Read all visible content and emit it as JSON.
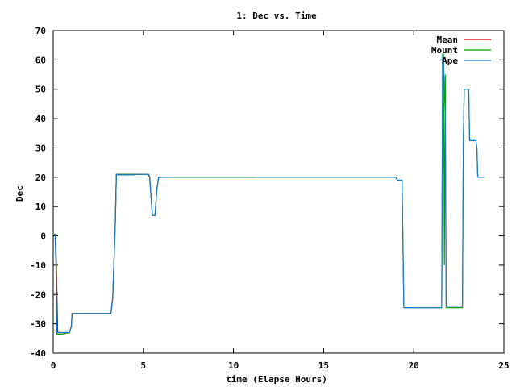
{
  "chart_data": {
    "type": "line",
    "title": "1: Dec vs. Time",
    "xlabel": "time (Elapse Hours)",
    "ylabel": "Dec",
    "xlim": [
      0,
      25
    ],
    "ylim": [
      -40,
      70
    ],
    "xticks": [
      0,
      5,
      10,
      15,
      20,
      25
    ],
    "yticks": [
      -40,
      -30,
      -20,
      -10,
      0,
      10,
      20,
      30,
      40,
      50,
      60,
      70
    ],
    "grid": false,
    "legend_position": "top-right",
    "series": [
      {
        "name": "Mean",
        "color": "#cc0000",
        "x": [
          0.05,
          0.12,
          0.18,
          0.25,
          0.3,
          0.5,
          0.9,
          1.0,
          1.05,
          1.6,
          2.0,
          3.2,
          3.3,
          3.45,
          3.5,
          3.6,
          4.5,
          4.6,
          5.25,
          5.35,
          5.5,
          5.65,
          5.75,
          5.85,
          11.2
        ],
        "y": [
          0.5,
          0.5,
          -10,
          -33,
          -33,
          -33,
          -33,
          -31,
          -26.5,
          -26.5,
          -26.5,
          -26.5,
          -21,
          5,
          21,
          21,
          21,
          21,
          21,
          20,
          7,
          7,
          16,
          20,
          20
        ]
      },
      {
        "name": "Mount",
        "color": "#00a000",
        "x": [
          0.05,
          0.1,
          0.15,
          0.2,
          0.3,
          0.5,
          0.9,
          1.0,
          1.05,
          1.6,
          3.2,
          3.3,
          3.45,
          3.5,
          3.6,
          4.5,
          5.3,
          5.35,
          5.5,
          5.65,
          5.75,
          5.85,
          19.0,
          19.1,
          19.35,
          19.45,
          21.5,
          21.55,
          21.6,
          21.65,
          21.7,
          21.75,
          21.8,
          21.85,
          21.9,
          22.7,
          22.75,
          22.8,
          23.05,
          23.1,
          23.45,
          23.5,
          23.55,
          23.9
        ],
        "y": [
          0.5,
          0.5,
          -3,
          -33.5,
          -33.5,
          -33.5,
          -33,
          -31,
          -26.5,
          -26.5,
          -26.5,
          -21,
          5,
          21,
          21,
          21,
          21,
          20,
          7,
          7,
          16,
          20,
          20,
          19,
          19,
          -24.5,
          -24.5,
          -24.5,
          62,
          62,
          -10,
          55,
          -24.5,
          -24.5,
          -24.5,
          -24.5,
          32,
          50,
          50,
          32.5,
          32.5,
          30,
          20,
          20
        ]
      },
      {
        "name": "Ape",
        "color": "#1f77c8",
        "x": [
          0.05,
          0.1,
          0.15,
          0.2,
          0.3,
          0.5,
          0.9,
          1.0,
          1.05,
          1.6,
          3.2,
          3.3,
          3.45,
          3.5,
          3.6,
          4.5,
          4.6,
          5.3,
          5.35,
          5.5,
          5.65,
          5.75,
          5.85,
          19.0,
          19.1,
          19.35,
          19.45,
          21.5,
          21.55,
          21.6,
          21.65,
          21.75,
          21.8,
          21.9,
          22.7,
          22.75,
          22.8,
          23.05,
          23.1,
          23.45,
          23.5,
          23.55,
          23.9
        ],
        "y": [
          0.5,
          0.5,
          -10,
          -33,
          -33,
          -33,
          -33,
          -31,
          -26.5,
          -26.5,
          -26.5,
          -21,
          5,
          21,
          20.8,
          20.8,
          21,
          21,
          20,
          7,
          7,
          16,
          20,
          20,
          19,
          19,
          -24.5,
          -24.5,
          -24.5,
          62,
          60,
          40,
          -24,
          -24,
          -24,
          32,
          50,
          50,
          32.5,
          32.5,
          30,
          20,
          20
        ]
      }
    ]
  }
}
